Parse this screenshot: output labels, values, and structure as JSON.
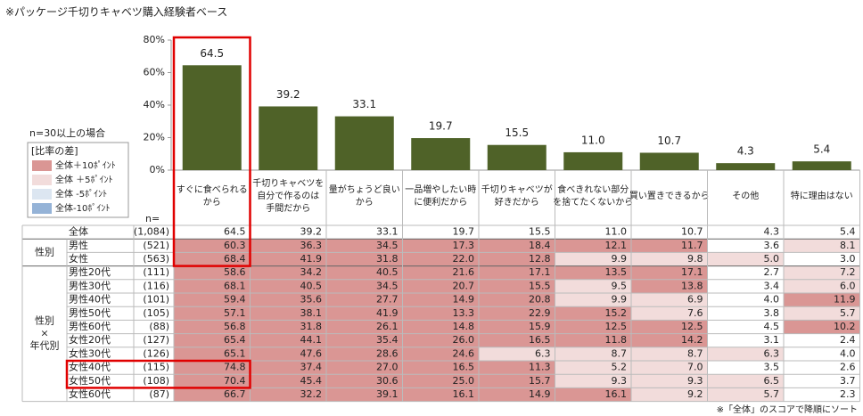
{
  "title": "※パッケージ千切りキャベツ購入経験者ベース",
  "chart_data": {
    "type": "bar",
    "categories": [
      [
        "すぐに食べられる",
        "から"
      ],
      [
        "千切りキャベツを",
        "自分で作るのは",
        "手間だから"
      ],
      [
        "量がちょうど良い",
        "から"
      ],
      [
        "一品増やしたい時",
        "に便利だから"
      ],
      [
        "千切りキャベツが",
        "好きだから"
      ],
      [
        "食べきれない部分",
        "を捨てたくないから"
      ],
      [
        "買い置きできるから"
      ],
      [
        "その他"
      ],
      [
        "特に理由はない"
      ]
    ],
    "values": [
      64.5,
      39.2,
      33.1,
      19.7,
      15.5,
      11.0,
      10.7,
      4.3,
      5.4
    ],
    "value_labels": [
      "64.5",
      "39.2",
      "33.1",
      "19.7",
      "15.5",
      "11.0",
      "10.7",
      "4.3",
      "5.4"
    ],
    "color": "#4f6228",
    "ylim": [
      0,
      80
    ],
    "yticks": [
      {
        "value": 0,
        "label": "0%"
      },
      {
        "value": 20,
        "label": "20%"
      },
      {
        "value": 40,
        "label": "40%"
      },
      {
        "value": 60,
        "label": "60%"
      },
      {
        "value": 80,
        "label": "80%"
      }
    ]
  },
  "legend": {
    "note": "n=30以上の場合",
    "title": "[比率の差]",
    "items": [
      {
        "label": "全体＋10ﾎﾟｲﾝﾄ",
        "color": "#da9694",
        "threshold": 10
      },
      {
        "label": "全体 ＋5ﾎﾟｲﾝﾄ",
        "color": "#f2dcdb",
        "threshold": 5
      },
      {
        "label": "全体 -5ﾎﾟｲﾝﾄ",
        "color": "#dce6f1",
        "threshold": -5
      },
      {
        "label": "全体-10ﾎﾟｲﾝﾄ",
        "color": "#95b3d7",
        "threshold": -10
      }
    ]
  },
  "table": {
    "n_header": "n=",
    "total": {
      "label": "全体",
      "n": "(1,084)",
      "values": [
        "64.5",
        "39.2",
        "33.1",
        "19.7",
        "15.5",
        "11.0",
        "10.7",
        "4.3",
        "5.4"
      ]
    },
    "groups": [
      {
        "label": [
          "性別"
        ],
        "rows": [
          {
            "label": "男性",
            "n": "(521)",
            "values": [
              "60.3",
              "36.3",
              "34.5",
              "17.3",
              "18.4",
              "12.1",
              "11.7",
              "3.6",
              "8.1"
            ]
          },
          {
            "label": "女性",
            "n": "(563)",
            "values": [
              "68.4",
              "41.9",
              "31.8",
              "22.0",
              "12.8",
              "9.9",
              "9.8",
              "5.0",
              "3.0"
            ]
          }
        ]
      },
      {
        "label": [
          "性別",
          "×",
          "年代別"
        ],
        "rows": [
          {
            "label": "男性20代",
            "n": "(111)",
            "values": [
              "58.6",
              "34.2",
              "40.5",
              "21.6",
              "17.1",
              "13.5",
              "17.1",
              "2.7",
              "7.2"
            ]
          },
          {
            "label": "男性30代",
            "n": "(116)",
            "values": [
              "68.1",
              "40.5",
              "34.5",
              "20.7",
              "15.5",
              "9.5",
              "13.8",
              "3.4",
              "6.0"
            ]
          },
          {
            "label": "男性40代",
            "n": "(101)",
            "values": [
              "59.4",
              "35.6",
              "27.7",
              "14.9",
              "20.8",
              "9.9",
              "6.9",
              "4.0",
              "11.9"
            ]
          },
          {
            "label": "男性50代",
            "n": "(105)",
            "values": [
              "57.1",
              "38.1",
              "41.9",
              "13.3",
              "22.9",
              "15.2",
              "7.6",
              "3.8",
              "5.7"
            ]
          },
          {
            "label": "男性60代",
            "n": "(88)",
            "values": [
              "56.8",
              "31.8",
              "26.1",
              "14.8",
              "15.9",
              "12.5",
              "12.5",
              "4.5",
              "10.2"
            ]
          },
          {
            "label": "女性20代",
            "n": "(127)",
            "values": [
              "65.4",
              "44.1",
              "35.4",
              "26.0",
              "16.5",
              "11.8",
              "14.2",
              "3.1",
              "2.4"
            ]
          },
          {
            "label": "女性30代",
            "n": "(126)",
            "values": [
              "65.1",
              "47.6",
              "28.6",
              "24.6",
              "6.3",
              "8.7",
              "8.7",
              "6.3",
              "4.0"
            ]
          },
          {
            "label": "女性40代",
            "n": "(115)",
            "values": [
              "74.8",
              "37.4",
              "27.0",
              "16.5",
              "11.3",
              "5.2",
              "7.0",
              "3.5",
              "2.6"
            ]
          },
          {
            "label": "女性50代",
            "n": "(108)",
            "values": [
              "70.4",
              "45.4",
              "30.6",
              "25.0",
              "15.7",
              "9.3",
              "9.3",
              "6.5",
              "3.7"
            ]
          },
          {
            "label": "女性60代",
            "n": "(87)",
            "values": [
              "66.7",
              "32.2",
              "39.1",
              "16.1",
              "14.9",
              "16.1",
              "9.2",
              "5.7",
              "2.3"
            ]
          }
        ]
      }
    ]
  },
  "footnote": "※「全体」のスコアで降順にソート"
}
